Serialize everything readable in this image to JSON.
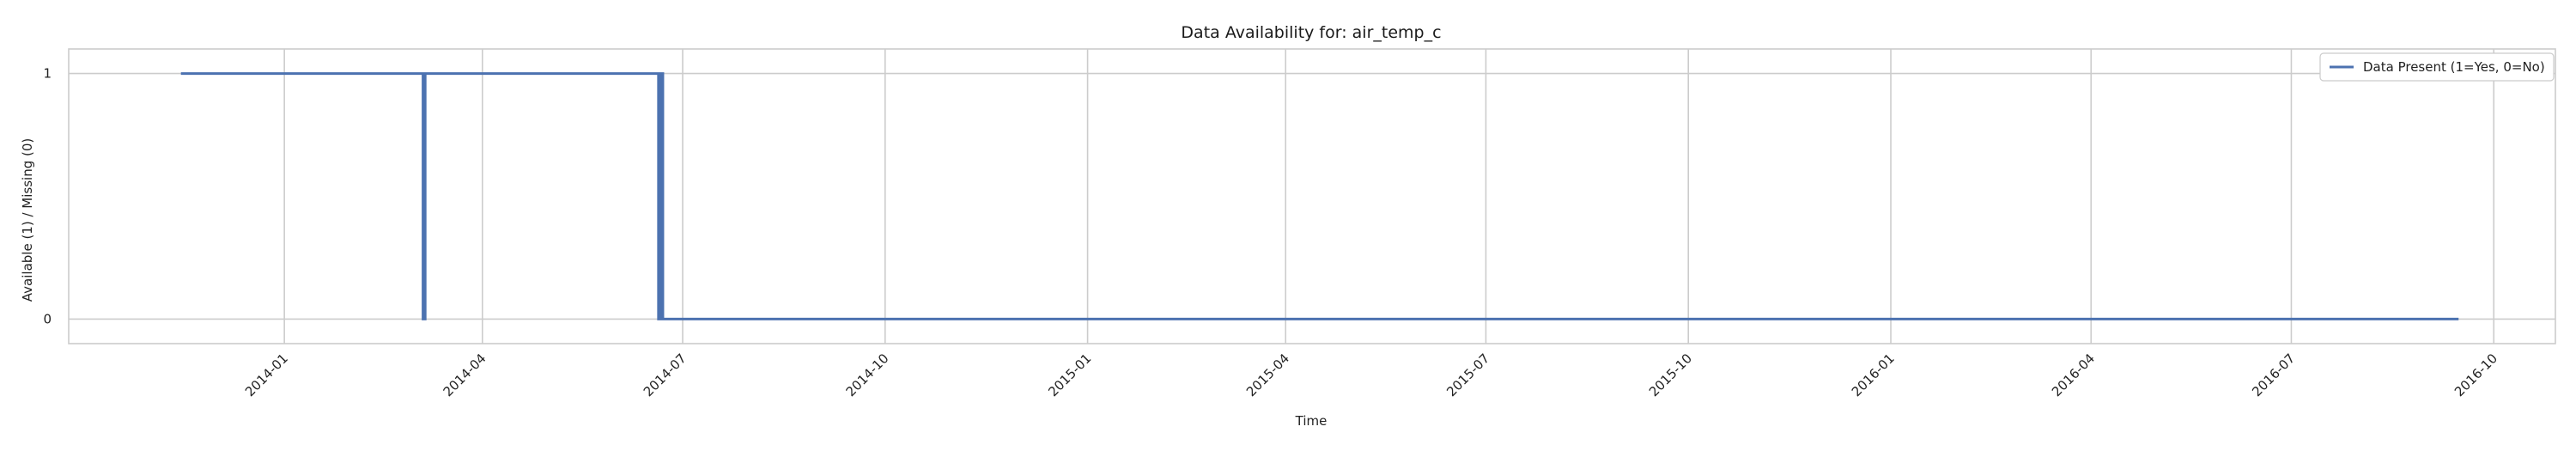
{
  "chart_data": {
    "type": "line",
    "title": "Data Availability for: air_temp_c",
    "xlabel": "Time",
    "ylabel": "Available (1) / Missing (0)",
    "xlim": [
      "2013-09-25",
      "2016-10-29"
    ],
    "ylim": [
      -0.1,
      1.1
    ],
    "y_ticks": [
      0,
      1
    ],
    "x_ticks": [
      "2014-01",
      "2014-04",
      "2014-07",
      "2014-10",
      "2015-01",
      "2015-04",
      "2015-07",
      "2015-10",
      "2016-01",
      "2016-04",
      "2016-07",
      "2016-10"
    ],
    "grid": true,
    "legend_position": "top-right",
    "series": [
      {
        "name": "Data Present (1=Yes, 0=No)",
        "color": "#4c72b0",
        "x": [
          "2013-11-15",
          "2014-03-05",
          "2014-03-05",
          "2014-03-06",
          "2014-03-06",
          "2014-06-20",
          "2014-06-20",
          "2014-06-21",
          "2014-06-21",
          "2014-06-22",
          "2014-06-22",
          "2015-09-15",
          "2015-09-15",
          "2016-09-15"
        ],
        "y": [
          1,
          1,
          0,
          0,
          1,
          1,
          0,
          0,
          1,
          1,
          0,
          0,
          0,
          0
        ]
      }
    ]
  }
}
